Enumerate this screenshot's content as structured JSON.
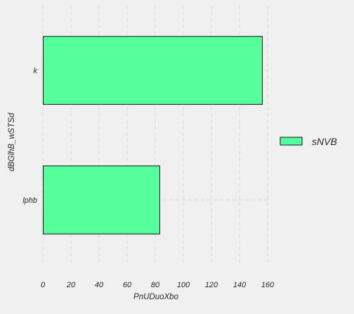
{
  "chart_data": {
    "type": "bar",
    "orientation": "horizontal",
    "categories": [
      "k",
      "lphb"
    ],
    "series": [
      {
        "name": "sNVB",
        "values": [
          156,
          83
        ]
      }
    ],
    "xlabel": "PnUDuoXbo",
    "ylabel": "dBGlhB_wSTSd",
    "xlim": [
      0,
      160
    ],
    "xticks": [
      0,
      20,
      40,
      60,
      80,
      100,
      120,
      140,
      160
    ],
    "grid": true,
    "legend_position": "right",
    "colors": {
      "bar_fill": "#55ff9c",
      "bar_stroke": "#111111",
      "grid": "#d6d6d6",
      "background": "#f0f0f0"
    }
  }
}
